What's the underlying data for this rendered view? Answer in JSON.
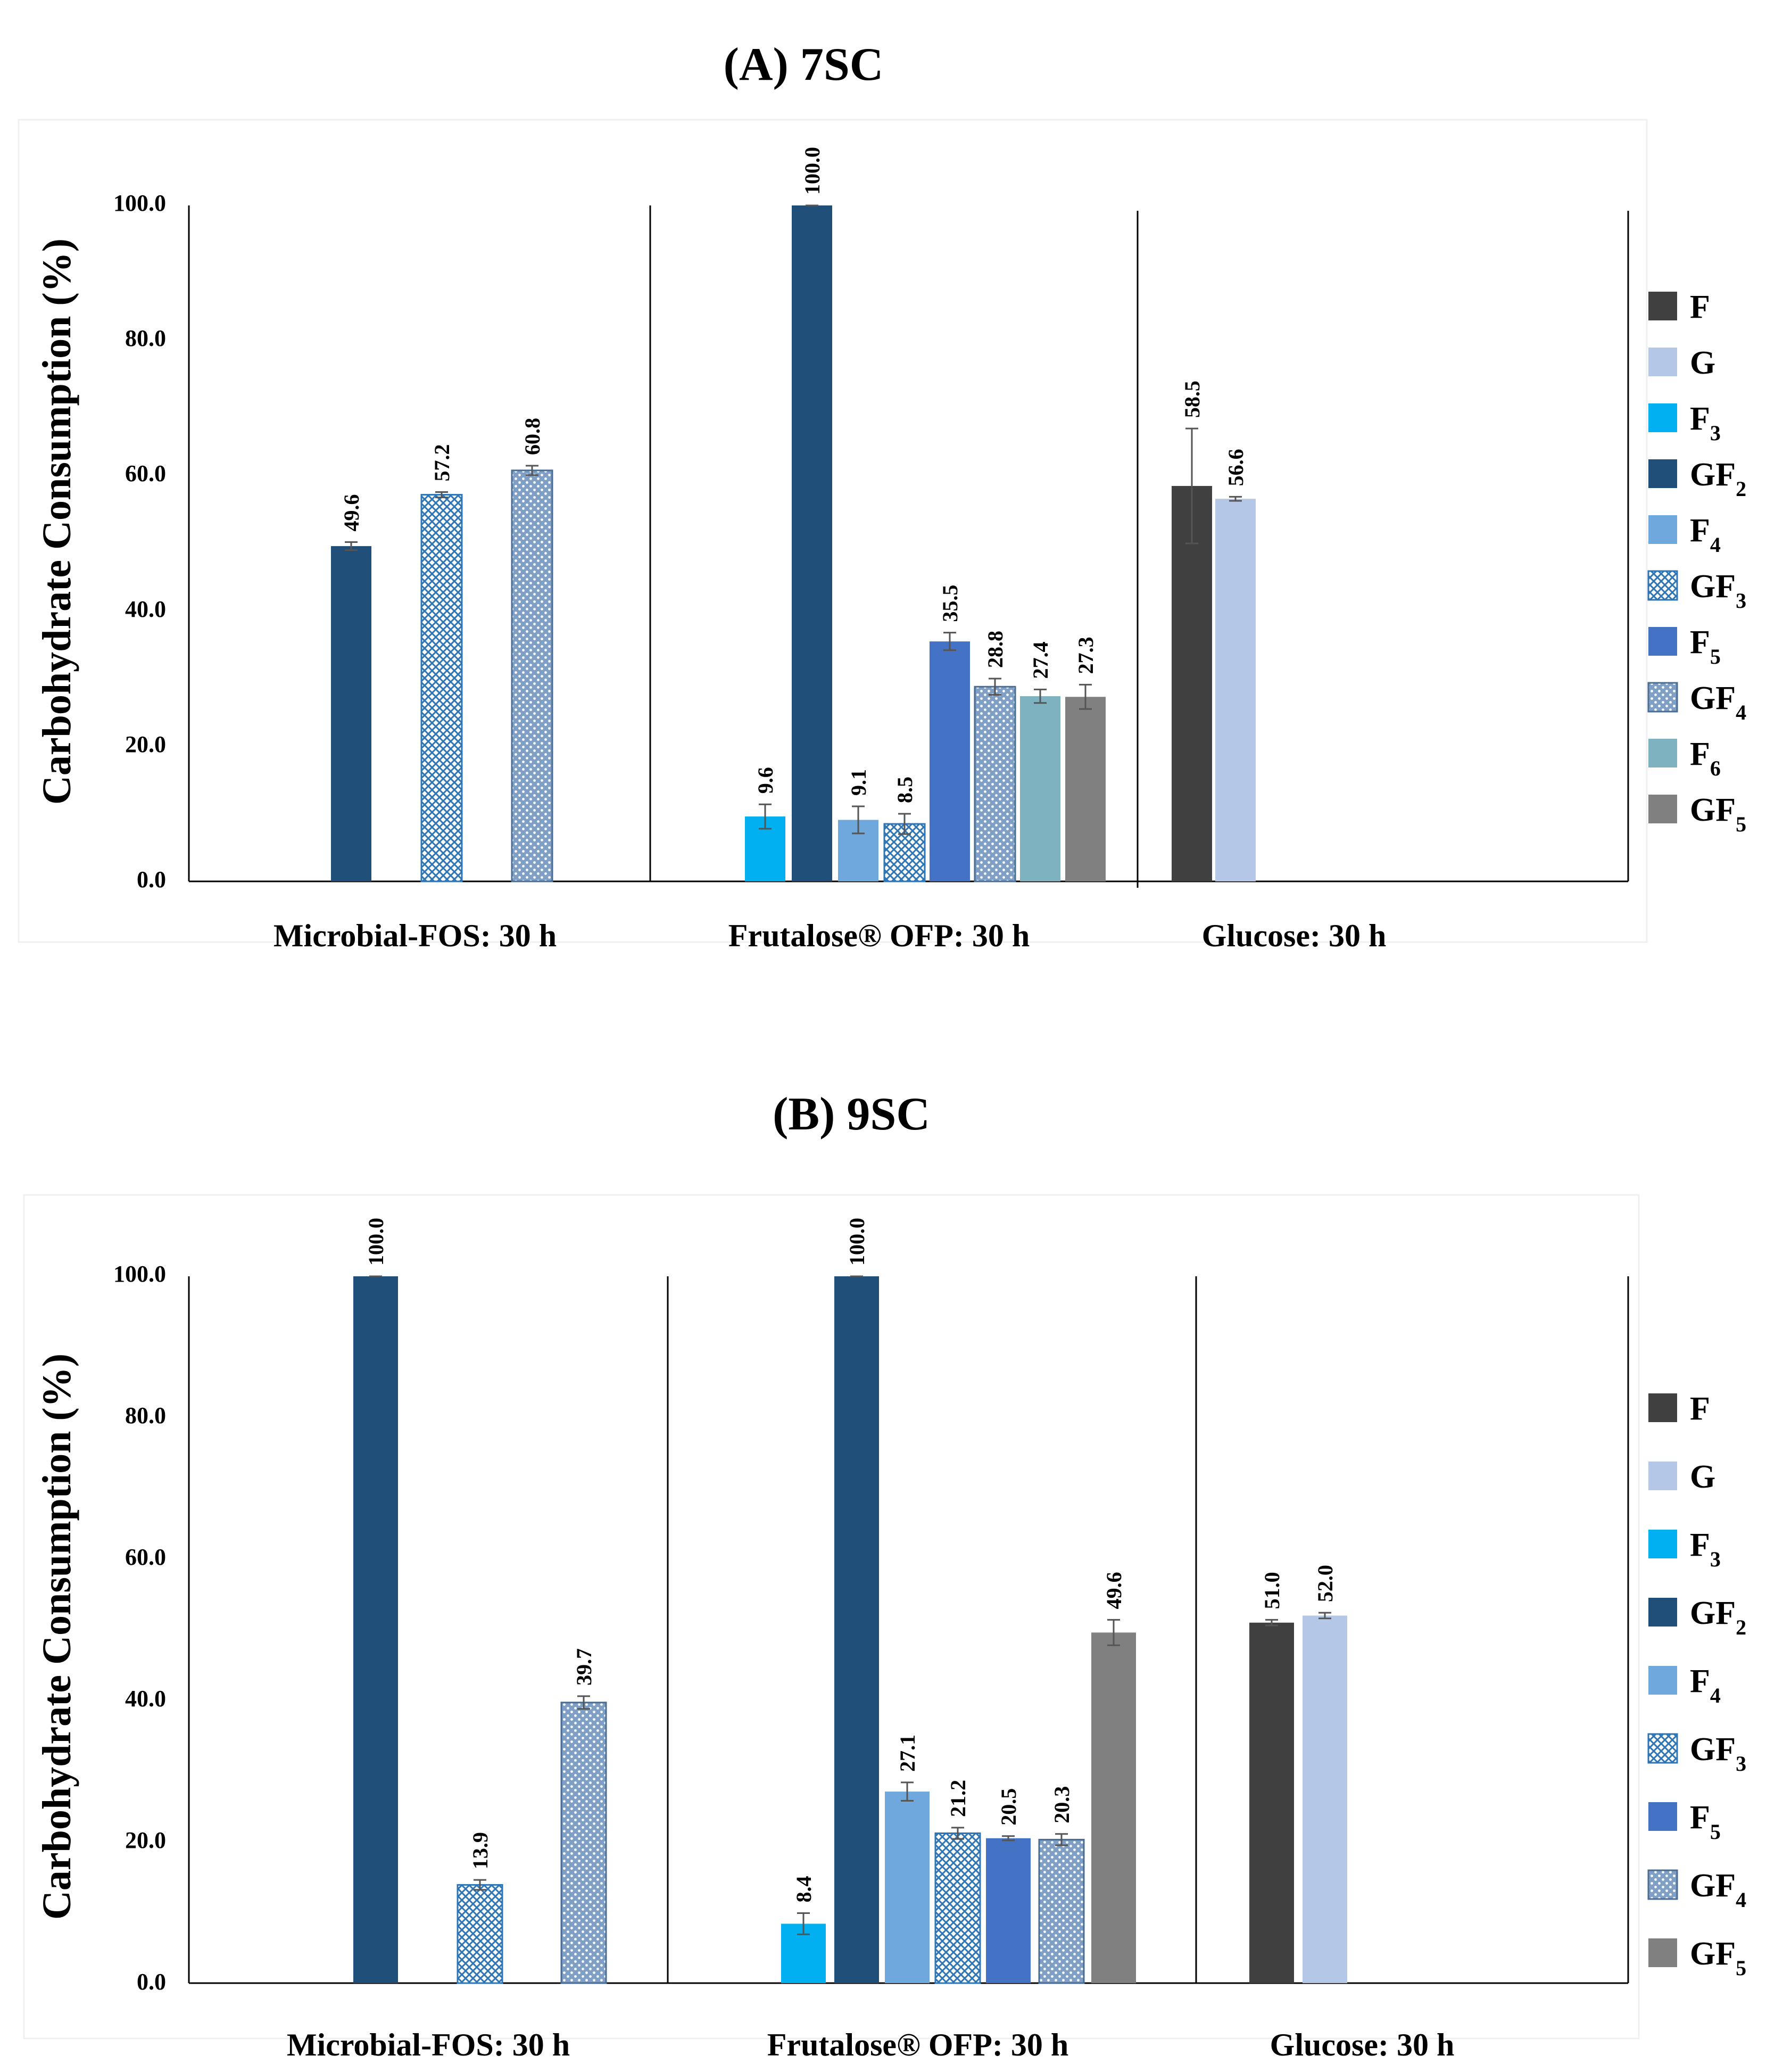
{
  "colors": {
    "F": "#404040",
    "G": "#b4c7e7",
    "F3": "#00b0f0",
    "GF2": "#1f4e79",
    "F4": "#6fa8dc",
    "GF3": "#9dc3e6",
    "F5": "#4472c4",
    "GF4": "#8fa9c8",
    "F6": "#7fb2c0",
    "GF5": "#808080"
  },
  "chart_data": [
    {
      "type": "bar",
      "title": "(A) 7SC",
      "ylabel": "Carbohydrate Consumption (%)",
      "ylim": [
        0,
        100
      ],
      "yticks": [
        "0.0",
        "20.0",
        "40.0",
        "60.0",
        "80.0",
        "100.0"
      ],
      "groups": [
        {
          "label": "Microbial-FOS: 30 h",
          "bars": [
            {
              "series": "GF2",
              "value": 49.6,
              "label": "49.6",
              "err": 0.6
            },
            {
              "series": "GF3",
              "value": 57.2,
              "label": "57.2",
              "err": 0.4
            },
            {
              "series": "GF4",
              "value": 60.8,
              "label": "60.8",
              "err": 0.7
            }
          ]
        },
        {
          "label": "Frutalose® OFP: 30 h",
          "bars": [
            {
              "series": "F3",
              "value": 9.6,
              "label": "9.6",
              "err": 1.8
            },
            {
              "series": "GF2",
              "value": 100.0,
              "label": "100.0",
              "err": 0.0
            },
            {
              "series": "F4",
              "value": 9.1,
              "label": "9.1",
              "err": 2.0
            },
            {
              "series": "GF3",
              "value": 8.5,
              "label": "8.5",
              "err": 1.5
            },
            {
              "series": "F5",
              "value": 35.5,
              "label": "35.5",
              "err": 1.3
            },
            {
              "series": "GF4",
              "value": 28.8,
              "label": "28.8",
              "err": 1.2
            },
            {
              "series": "F6",
              "value": 27.4,
              "label": "27.4",
              "err": 1.0
            },
            {
              "series": "GF5",
              "value": 27.3,
              "label": "27.3",
              "err": 1.8
            }
          ]
        },
        {
          "label": "Glucose: 30 h",
          "bars": [
            {
              "series": "F",
              "value": 58.5,
              "label": "58.5",
              "err": 8.5
            },
            {
              "series": "G",
              "value": 56.6,
              "label": "56.6",
              "err": 0.3
            }
          ]
        }
      ],
      "legend": [
        {
          "key": "F",
          "main": "F",
          "sub": ""
        },
        {
          "key": "G",
          "main": "G",
          "sub": ""
        },
        {
          "key": "F3",
          "main": "F",
          "sub": "3"
        },
        {
          "key": "GF2",
          "main": "GF",
          "sub": "2"
        },
        {
          "key": "F4",
          "main": "F",
          "sub": "4"
        },
        {
          "key": "GF3",
          "main": "GF",
          "sub": "3"
        },
        {
          "key": "F5",
          "main": "F",
          "sub": "5"
        },
        {
          "key": "GF4",
          "main": "GF",
          "sub": "4"
        },
        {
          "key": "F6",
          "main": "F",
          "sub": "6"
        },
        {
          "key": "GF5",
          "main": "GF",
          "sub": "5"
        }
      ]
    },
    {
      "type": "bar",
      "title": "(B) 9SC",
      "ylabel": "Carbohydrate Consumption (%)",
      "ylim": [
        0,
        100
      ],
      "yticks": [
        "0.0",
        "20.0",
        "40.0",
        "60.0",
        "80.0",
        "100.0"
      ],
      "groups": [
        {
          "label": "Microbial-FOS: 30 h",
          "bars": [
            {
              "series": "GF2",
              "value": 100.0,
              "label": "100.0",
              "err": 0.0
            },
            {
              "series": "GF3",
              "value": 13.9,
              "label": "13.9",
              "err": 0.7
            },
            {
              "series": "GF4",
              "value": 39.7,
              "label": "39.7",
              "err": 0.9
            }
          ]
        },
        {
          "label": "Frutalose® OFP: 30 h",
          "bars": [
            {
              "series": "F3",
              "value": 8.4,
              "label": "8.4",
              "err": 1.5
            },
            {
              "series": "GF2",
              "value": 100.0,
              "label": "100.0",
              "err": 0.0
            },
            {
              "series": "F4",
              "value": 27.1,
              "label": "27.1",
              "err": 1.3
            },
            {
              "series": "GF3",
              "value": 21.2,
              "label": "21.2",
              "err": 0.8
            },
            {
              "series": "F5",
              "value": 20.5,
              "label": "20.5",
              "err": 0.3
            },
            {
              "series": "GF4",
              "value": 20.3,
              "label": "20.3",
              "err": 0.8
            },
            {
              "series": "GF5",
              "value": 49.6,
              "label": "49.6",
              "err": 1.8
            }
          ]
        },
        {
          "label": "Glucose: 30 h",
          "bars": [
            {
              "series": "F",
              "value": 51.0,
              "label": "51.0",
              "err": 0.4
            },
            {
              "series": "G",
              "value": 52.0,
              "label": "52.0",
              "err": 0.4
            }
          ]
        }
      ],
      "legend": [
        {
          "key": "F",
          "main": "F",
          "sub": ""
        },
        {
          "key": "G",
          "main": "G",
          "sub": ""
        },
        {
          "key": "F3",
          "main": "F",
          "sub": "3"
        },
        {
          "key": "GF2",
          "main": "GF",
          "sub": "2"
        },
        {
          "key": "F4",
          "main": "F",
          "sub": "4"
        },
        {
          "key": "GF3",
          "main": "GF",
          "sub": "3"
        },
        {
          "key": "F5",
          "main": "F",
          "sub": "5"
        },
        {
          "key": "GF4",
          "main": "GF",
          "sub": "4"
        },
        {
          "key": "GF5",
          "main": "GF",
          "sub": "5"
        }
      ]
    }
  ]
}
